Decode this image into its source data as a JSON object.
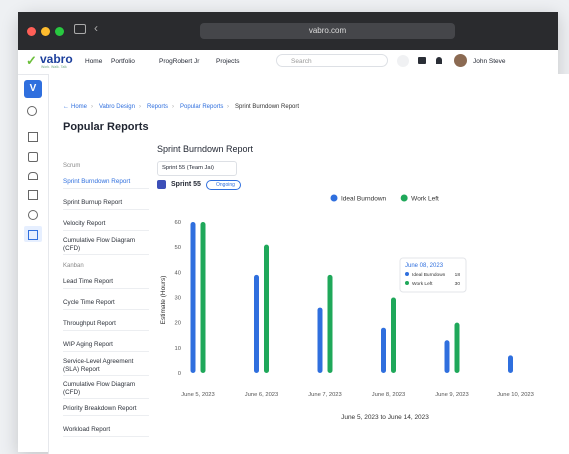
{
  "browser": {
    "url": "vabro.com"
  },
  "nav": {
    "logo": "vabro",
    "tagline": "Work. Walk. Talk",
    "links": [
      "Home",
      "Portfolio",
      "ProgRobert Jr",
      "Projects"
    ],
    "search": "Search",
    "user": "John Steve"
  },
  "rail": {
    "workspace": "V"
  },
  "breadcrumb": [
    "Home",
    "Vabro Design",
    "Reports",
    "Popular Reports",
    "Sprint Burndown Report"
  ],
  "page_title": "Popular Reports",
  "reports": {
    "scrum_heading": "Scrum",
    "scrum": [
      "Sprint Burndown Report",
      "Sprint Burnup Report",
      "Velocity Report",
      "Cumulative Flow Diagram (CFD)"
    ],
    "kanban_heading": "Kanban",
    "kanban": [
      "Lead Time Report",
      "Cycle Time Report",
      "Throughput Report",
      "WIP Aging Report",
      "Service-Level Agreement (SLA) Report",
      "Cumulative Flow Diagram (CFD)",
      "Priority Breakdown Report",
      "Workload Report"
    ]
  },
  "report": {
    "title": "Sprint Burndown Report",
    "sprint_select": "Sprint 55 (Team Jai)",
    "sprint": "Sprint 55",
    "status": "Ongoing"
  },
  "chart": {
    "type": "bar",
    "y_label": "Estimate (Hours)",
    "x_label": "June 5, 2023 to June 14, 2023",
    "categories": [
      "June 5, 2023",
      "June 6, 2023",
      "June 7, 2023",
      "June 8, 2023",
      "June 9, 2023",
      "June 10, 2023"
    ],
    "series": [
      {
        "name": "Ideal Burndown",
        "color": "#2f6fde",
        "values": [
          60,
          39,
          26,
          18,
          13,
          7
        ]
      },
      {
        "name": "Work Left",
        "color": "#1fa85a",
        "values": [
          60,
          51,
          39,
          30,
          20,
          null
        ]
      }
    ],
    "ylim": [
      0,
      60
    ],
    "yticks": [
      0,
      10,
      20,
      30,
      40,
      50,
      60
    ],
    "grid": false,
    "tooltip": {
      "date": "June 08, 2023",
      "index": 3
    }
  }
}
